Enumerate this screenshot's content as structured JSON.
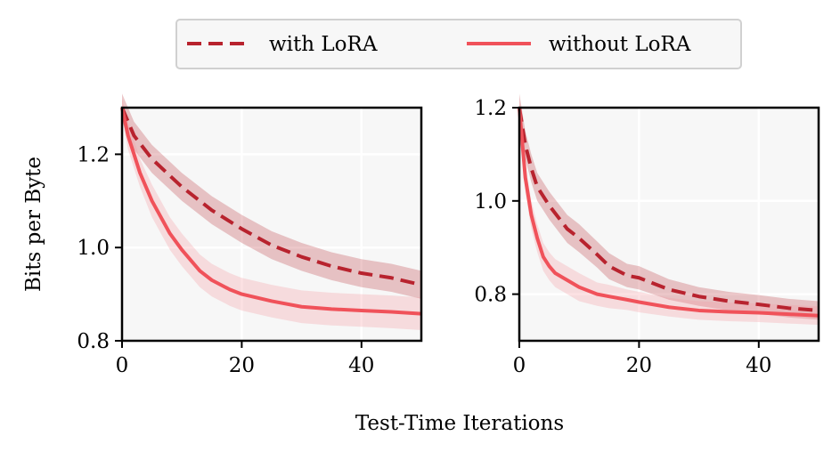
{
  "chart_data": {
    "legend": {
      "placement": "top-center",
      "entries": [
        {
          "label": "with LoRA",
          "style": "dashed",
          "color": "#b8232e"
        },
        {
          "label": "without LoRA",
          "style": "solid",
          "color": "#f0525a"
        }
      ]
    },
    "shared_xlabel": "Test-Time Iterations",
    "panels": [
      {
        "type": "line",
        "ylabel": "Bits per Byte",
        "xlim": [
          0,
          50
        ],
        "ylim": [
          0.8,
          1.3
        ],
        "xticks": [
          0,
          20,
          40
        ],
        "yticks": [
          0.8,
          1.0,
          1.2
        ],
        "ytick_labels": [
          "0.8",
          "1.0",
          "1.2"
        ],
        "grid": true,
        "series": [
          {
            "name": "with LoRA",
            "style": "dashed",
            "color": "#b8232e",
            "band_color": "#c0454c",
            "x": [
              0,
              2,
              5,
              10,
              15,
              20,
              25,
              30,
              35,
              40,
              45,
              50
            ],
            "y": [
              1.3,
              1.24,
              1.19,
              1.13,
              1.08,
              1.04,
              1.005,
              0.98,
              0.96,
              0.945,
              0.935,
              0.92
            ],
            "band": [
              0.03,
              0.03,
              0.03,
              0.03,
              0.03,
              0.03,
              0.03,
              0.03,
              0.03,
              0.03,
              0.03,
              0.03
            ]
          },
          {
            "name": "without LoRA",
            "style": "solid",
            "color": "#f0525a",
            "band_color": "#f59aa2",
            "x": [
              0,
              1,
              2,
              3,
              5,
              8,
              10,
              13,
              15,
              18,
              20,
              25,
              30,
              35,
              40,
              45,
              50
            ],
            "y": [
              1.3,
              1.24,
              1.2,
              1.16,
              1.1,
              1.03,
              0.995,
              0.95,
              0.93,
              0.91,
              0.9,
              0.885,
              0.873,
              0.868,
              0.865,
              0.862,
              0.858
            ],
            "band": [
              0.02,
              0.03,
              0.03,
              0.03,
              0.035,
              0.035,
              0.035,
              0.035,
              0.035,
              0.035,
              0.035,
              0.035,
              0.035,
              0.035,
              0.035,
              0.035,
              0.035
            ]
          }
        ]
      },
      {
        "type": "line",
        "ylabel": "",
        "xlim": [
          0,
          50
        ],
        "ylim": [
          0.7,
          1.2
        ],
        "xticks": [
          0,
          20,
          40
        ],
        "yticks": [
          0.8,
          1.0,
          1.2
        ],
        "ytick_labels": [
          "0.8",
          "1.0",
          "1.2"
        ],
        "grid": true,
        "series": [
          {
            "name": "with LoRA",
            "style": "dashed",
            "color": "#b8232e",
            "band_color": "#c0454c",
            "x": [
              0,
              1,
              2,
              3,
              5,
              8,
              10,
              13,
              15,
              18,
              20,
              25,
              30,
              35,
              40,
              45,
              50
            ],
            "y": [
              1.2,
              1.12,
              1.07,
              1.03,
              0.99,
              0.94,
              0.92,
              0.885,
              0.86,
              0.84,
              0.835,
              0.81,
              0.795,
              0.785,
              0.778,
              0.77,
              0.765
            ],
            "band": [
              0.03,
              0.03,
              0.03,
              0.03,
              0.03,
              0.03,
              0.03,
              0.028,
              0.028,
              0.025,
              0.025,
              0.022,
              0.02,
              0.02,
              0.02,
              0.02,
              0.02
            ]
          },
          {
            "name": "without LoRA",
            "style": "solid",
            "color": "#f0525a",
            "band_color": "#f59aa2",
            "x": [
              0,
              1,
              2,
              3,
              4,
              5,
              6,
              8,
              10,
              13,
              15,
              18,
              20,
              25,
              30,
              35,
              40,
              45,
              50
            ],
            "y": [
              1.2,
              1.05,
              0.97,
              0.92,
              0.88,
              0.86,
              0.845,
              0.83,
              0.815,
              0.8,
              0.795,
              0.788,
              0.783,
              0.772,
              0.765,
              0.762,
              0.76,
              0.757,
              0.754
            ],
            "band": [
              0.02,
              0.03,
              0.03,
              0.03,
              0.03,
              0.03,
              0.03,
              0.03,
              0.03,
              0.025,
              0.025,
              0.022,
              0.022,
              0.02,
              0.02,
              0.02,
              0.02,
              0.02,
              0.02
            ]
          }
        ]
      }
    ]
  }
}
